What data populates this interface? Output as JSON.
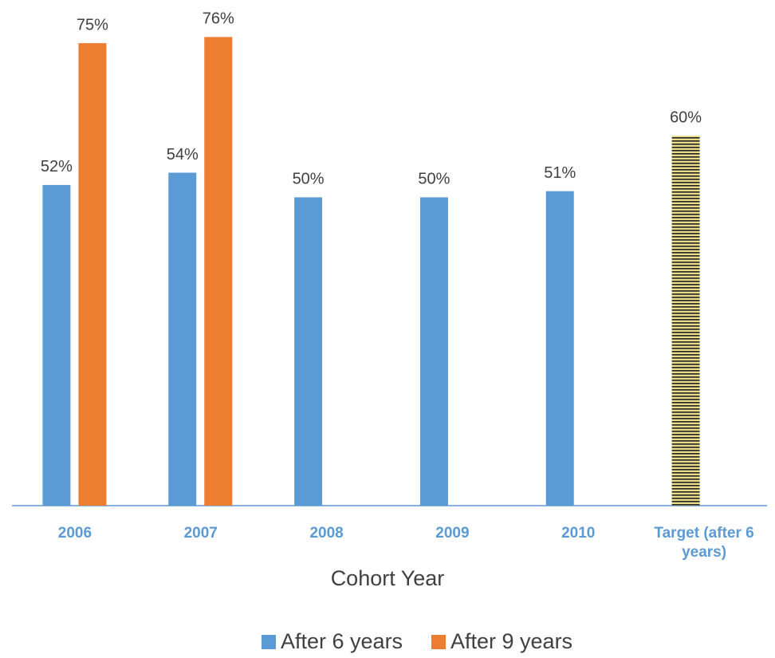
{
  "chart_data": {
    "type": "bar",
    "x_label": "Cohort Year",
    "categories": [
      "2006",
      "2007",
      "2008",
      "2009",
      "2010",
      "Target (after 6 years)"
    ],
    "series": [
      {
        "name": "After 6 years",
        "color": "#5b9bd5",
        "values": [
          52,
          54,
          50,
          50,
          51,
          60
        ],
        "value_labels": [
          "52%",
          "54%",
          "50%",
          "50%",
          "51%",
          "60%"
        ]
      },
      {
        "name": "After 9 years",
        "color": "#ed7d31",
        "values": [
          75,
          76,
          null,
          null,
          null,
          null
        ],
        "value_labels": [
          "75%",
          "76%",
          null,
          null,
          null,
          null
        ]
      }
    ],
    "hatched": [
      {
        "series": 0,
        "index": 5
      }
    ],
    "ylim": [
      0,
      82
    ],
    "legend": "bottom"
  }
}
